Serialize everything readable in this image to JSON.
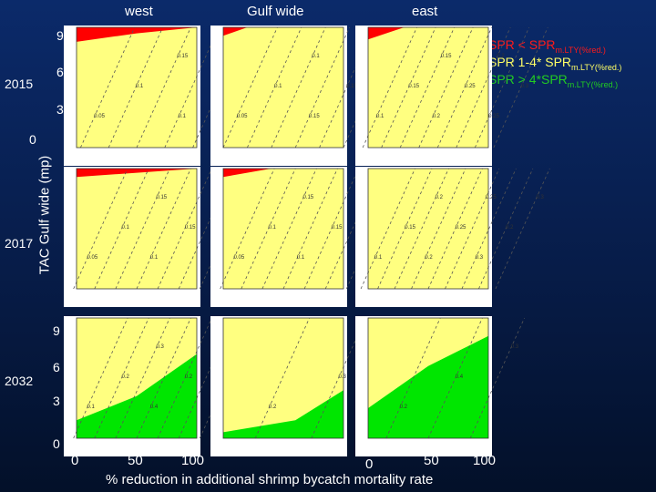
{
  "columns": [
    "west",
    "Gulf wide",
    "east"
  ],
  "rows": [
    "2015",
    "2017",
    "2032"
  ],
  "y_axis_label": "TAC Gulf wide (mp)",
  "x_axis_label": "% reduction  in additional shrimp bycatch mortality rate",
  "y_ticks_top": [
    "9",
    "6",
    "3",
    "0"
  ],
  "y_ticks_bottom": [
    "9",
    "6",
    "3",
    "0"
  ],
  "x_ticks_left": [
    "0",
    "50",
    "100"
  ],
  "x_ticks_right": [
    "0",
    "50",
    "100"
  ],
  "legend": [
    {
      "text": "SPR < SPR",
      "sub": "m.LTY(%red.)",
      "color": "#ff1a1a"
    },
    {
      "text": "SPR 1-4* SPR",
      "sub": "m.LTY(%red.)",
      "color": "#ffff66"
    },
    {
      "text": "SPR > 4*SPR",
      "sub": "m.LTY(%red.)",
      "color": "#22cc22"
    }
  ],
  "colors": {
    "red": "#ff0000",
    "yellow": "#ffff80",
    "green": "#00e600"
  },
  "chart_data": {
    "type": "heatmap",
    "x_range": [
      0,
      100
    ],
    "y_range": [
      0,
      10
    ],
    "panels": [
      {
        "row": "2015",
        "col": "west",
        "red_boundary": [
          [
            0,
            8.8
          ],
          [
            50,
            9.5
          ],
          [
            100,
            10
          ]
        ],
        "green_boundary": null,
        "contours": [
          "0.05",
          "0.1",
          "0.15",
          "0.1",
          "0.15"
        ]
      },
      {
        "row": "2015",
        "col": "Gulf wide",
        "red_boundary": [
          [
            0,
            9.3
          ],
          [
            20,
            10
          ]
        ],
        "green_boundary": null,
        "contours": [
          "0.05",
          "0.1",
          "0.1",
          "0.15",
          "0.15",
          "0.1"
        ]
      },
      {
        "row": "2015",
        "col": "east",
        "red_boundary": [
          [
            0,
            9.0
          ],
          [
            30,
            10
          ]
        ],
        "green_boundary": null,
        "contours": [
          "0.1",
          "0.15",
          "0.15",
          "0.2",
          "0.25",
          "0.2",
          "0.25",
          "0.3"
        ]
      },
      {
        "row": "2017",
        "col": "west",
        "red_boundary": [
          [
            0,
            9.3
          ],
          [
            100,
            10
          ]
        ],
        "green_boundary": null,
        "contours": [
          "0.05",
          "0.1",
          "0.15",
          "0.1",
          "0.15",
          "0.2",
          "0.2"
        ]
      },
      {
        "row": "2017",
        "col": "Gulf wide",
        "red_boundary": [
          [
            0,
            9.3
          ],
          [
            40,
            10
          ]
        ],
        "green_boundary": null,
        "contours": [
          "0.05",
          "0.1",
          "0.15",
          "0.1",
          "0.15",
          "0.2",
          "0.15"
        ]
      },
      {
        "row": "2017",
        "col": "east",
        "red_boundary": null,
        "green_boundary": null,
        "contours": [
          "0.1",
          "0.15",
          "0.2",
          "0.2",
          "0.25",
          "0.25",
          "0.3",
          "0.2",
          "0.3"
        ]
      },
      {
        "row": "2032",
        "col": "west",
        "red_boundary": null,
        "green_boundary": [
          [
            0,
            1.5
          ],
          [
            50,
            3.5
          ],
          [
            100,
            7.0
          ]
        ],
        "contours": [
          "0.1",
          "0.2",
          "0.3",
          "0.4",
          "0.2",
          "0.3",
          "0.4"
        ]
      },
      {
        "row": "2032",
        "col": "Gulf wide",
        "red_boundary": null,
        "green_boundary": [
          [
            0,
            0.5
          ],
          [
            60,
            1.5
          ],
          [
            100,
            4.0
          ]
        ],
        "contours": [
          "0.2",
          "0.3"
        ]
      },
      {
        "row": "2032",
        "col": "east",
        "red_boundary": null,
        "green_boundary": [
          [
            0,
            2.5
          ],
          [
            50,
            6.0
          ],
          [
            100,
            8.5
          ]
        ],
        "contours": [
          "0.2",
          "0.4",
          "0.3"
        ]
      }
    ]
  }
}
